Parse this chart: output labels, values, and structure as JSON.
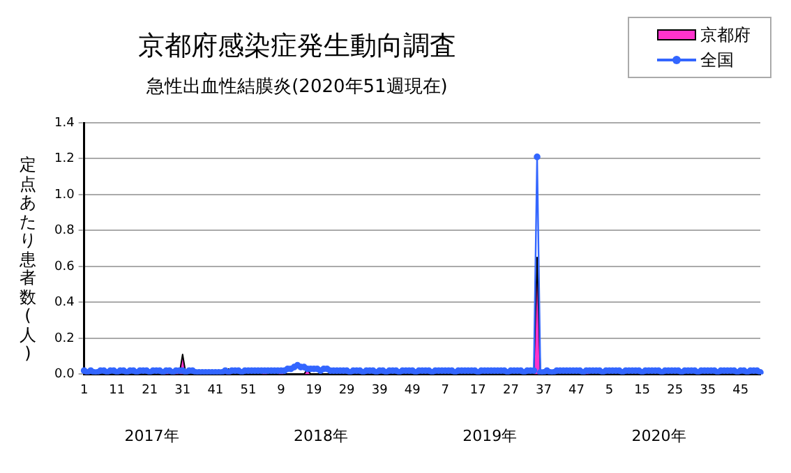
{
  "chart_data": {
    "type": "line",
    "title": "京都府感染症発生動向調査",
    "subtitle": "急性出血性結膜炎(2020年51週現在)",
    "ylabel": "定点あたり患者数(人)",
    "categories": [
      "1",
      null,
      null,
      null,
      null,
      null,
      null,
      null,
      null,
      null,
      "11",
      null,
      null,
      null,
      null,
      null,
      null,
      null,
      null,
      null,
      "21",
      null,
      null,
      null,
      null,
      null,
      null,
      null,
      null,
      null,
      "31",
      null,
      null,
      null,
      null,
      null,
      null,
      null,
      null,
      null,
      "41",
      null,
      null,
      null,
      null,
      null,
      null,
      null,
      null,
      null,
      "51",
      null,
      null,
      null,
      null,
      null,
      null,
      null,
      null,
      null,
      "9",
      null,
      null,
      null,
      null,
      null,
      null,
      null,
      null,
      null,
      "19",
      null,
      null,
      null,
      null,
      null,
      null,
      null,
      null,
      null,
      "29",
      null,
      null,
      null,
      null,
      null,
      null,
      null,
      null,
      null,
      "39",
      null,
      null,
      null,
      null,
      null,
      null,
      null,
      null,
      null,
      "49",
      null,
      null,
      null,
      null,
      null,
      null,
      null,
      null,
      null,
      "7",
      null,
      null,
      null,
      null,
      null,
      null,
      null,
      null,
      null,
      "17",
      null,
      null,
      null,
      null,
      null,
      null,
      null,
      null,
      null,
      "27",
      null,
      null,
      null,
      null,
      null,
      null,
      null,
      null,
      null,
      "37",
      null,
      null,
      null,
      null,
      null,
      null,
      null,
      null,
      null,
      "47",
      null,
      null,
      null,
      null,
      null,
      null,
      null,
      null,
      null,
      "5",
      null,
      null,
      null,
      null,
      null,
      null,
      null,
      null,
      null,
      "15",
      null,
      null,
      null,
      null,
      null,
      null,
      null,
      null,
      null,
      "25",
      null,
      null,
      null,
      null,
      null,
      null,
      null,
      null,
      null,
      "35",
      null,
      null,
      null,
      null,
      null,
      null,
      null,
      null,
      null,
      "45",
      null,
      null,
      null,
      null,
      null,
      null
    ],
    "series": [
      {
        "name": "京都府",
        "type": "area",
        "color": "#ff33cc",
        "values": [
          0.03,
          0,
          0,
          0,
          0,
          0,
          0,
          0,
          0,
          0,
          0,
          0,
          0,
          0,
          0,
          0,
          0,
          0,
          0,
          0,
          0,
          0,
          0,
          0,
          0,
          0.03,
          0,
          0,
          0.03,
          0,
          0.11,
          0,
          0,
          0,
          0,
          0,
          0,
          0,
          0,
          0,
          0,
          0,
          0,
          0,
          0.03,
          0,
          0,
          0,
          0,
          0,
          0,
          0,
          0,
          0,
          0,
          0.03,
          0,
          0,
          0,
          0,
          0.03,
          0,
          0,
          0,
          0,
          0,
          0,
          0,
          0.03,
          0,
          0,
          0,
          0,
          0,
          0,
          0,
          0,
          0,
          0,
          0,
          0,
          0,
          0,
          0,
          0,
          0,
          0,
          0,
          0,
          0,
          0,
          0,
          0,
          0,
          0,
          0,
          0,
          0,
          0,
          0,
          0,
          0,
          0,
          0,
          0,
          0,
          0,
          0,
          0,
          0,
          0,
          0,
          0,
          0,
          0,
          0,
          0,
          0,
          0,
          0,
          0,
          0,
          0,
          0,
          0,
          0,
          0,
          0,
          0,
          0,
          0,
          0,
          0,
          0,
          0,
          0,
          0,
          0,
          0.65,
          0,
          0,
          0,
          0,
          0,
          0,
          0,
          0,
          0,
          0,
          0,
          0,
          0,
          0,
          0.03,
          0,
          0,
          0,
          0,
          0,
          0,
          0,
          0,
          0,
          0,
          0,
          0,
          0,
          0,
          0,
          0,
          0,
          0,
          0,
          0,
          0,
          0,
          0,
          0,
          0,
          0,
          0,
          0,
          0,
          0,
          0,
          0,
          0,
          0,
          0,
          0,
          0,
          0,
          0,
          0,
          0,
          0,
          0,
          0,
          0,
          0,
          0,
          0,
          0,
          0,
          0,
          0,
          0
        ]
      },
      {
        "name": "全国",
        "color": "#3366ff",
        "marker": "circle",
        "values": [
          0.02,
          0.01,
          0.02,
          0.01,
          0.01,
          0.02,
          0.02,
          0.01,
          0.02,
          0.02,
          0.01,
          0.02,
          0.02,
          0.01,
          0.02,
          0.02,
          0.01,
          0.02,
          0.02,
          0.02,
          0.01,
          0.02,
          0.02,
          0.02,
          0.01,
          0.02,
          0.02,
          0.01,
          0.02,
          0.02,
          0.02,
          0.01,
          0.02,
          0.02,
          0.01,
          0.01,
          0.01,
          0.01,
          0.01,
          0.01,
          0.01,
          0.01,
          0.01,
          0.02,
          0.01,
          0.02,
          0.02,
          0.02,
          0.01,
          0.02,
          0.02,
          0.02,
          0.02,
          0.02,
          0.02,
          0.02,
          0.02,
          0.02,
          0.02,
          0.02,
          0.02,
          0.02,
          0.03,
          0.03,
          0.04,
          0.05,
          0.04,
          0.04,
          0.03,
          0.03,
          0.03,
          0.03,
          0.02,
          0.03,
          0.03,
          0.02,
          0.02,
          0.02,
          0.02,
          0.02,
          0.02,
          0.01,
          0.02,
          0.02,
          0.02,
          0.01,
          0.02,
          0.02,
          0.02,
          0.01,
          0.02,
          0.02,
          0.01,
          0.02,
          0.02,
          0.02,
          0.01,
          0.02,
          0.02,
          0.02,
          0.02,
          0.01,
          0.02,
          0.02,
          0.02,
          0.02,
          0.01,
          0.02,
          0.02,
          0.02,
          0.02,
          0.02,
          0.02,
          0.01,
          0.02,
          0.02,
          0.02,
          0.02,
          0.02,
          0.02,
          0.01,
          0.02,
          0.02,
          0.02,
          0.02,
          0.02,
          0.02,
          0.02,
          0.02,
          0.01,
          0.02,
          0.02,
          0.02,
          0.02,
          0.01,
          0.02,
          0.02,
          0.02,
          1.21,
          0.01,
          0.01,
          0.02,
          0.01,
          0.01,
          0.02,
          0.02,
          0.02,
          0.02,
          0.02,
          0.02,
          0.02,
          0.02,
          0.01,
          0.02,
          0.02,
          0.02,
          0.02,
          0.02,
          0.01,
          0.02,
          0.02,
          0.02,
          0.02,
          0.02,
          0.01,
          0.02,
          0.02,
          0.02,
          0.02,
          0.02,
          0.01,
          0.02,
          0.02,
          0.02,
          0.02,
          0.02,
          0.01,
          0.02,
          0.02,
          0.02,
          0.02,
          0.02,
          0.01,
          0.02,
          0.02,
          0.02,
          0.02,
          0.01,
          0.02,
          0.02,
          0.02,
          0.02,
          0.02,
          0.01,
          0.02,
          0.02,
          0.02,
          0.02,
          0.02,
          0.01,
          0.02,
          0.02,
          0.01,
          0.02,
          0.02,
          0.02,
          0.01
        ]
      }
    ],
    "ylim": [
      0,
      1.4
    ],
    "yticks": [
      {
        "value": 0,
        "label": "0.0"
      },
      {
        "value": 0.2,
        "label": "0.2"
      },
      {
        "value": 0.4,
        "label": "0.4"
      },
      {
        "value": 0.6,
        "label": "0.6"
      },
      {
        "value": 0.8,
        "label": "0.8"
      },
      {
        "value": 1,
        "label": "1.0"
      },
      {
        "value": 1.2,
        "label": "1.2"
      },
      {
        "value": 1.4,
        "label": "1.4"
      }
    ],
    "grid": "y",
    "legend": "top right",
    "annotations": [
      "2017年",
      "2018年",
      "2019年",
      "2020年"
    ]
  }
}
